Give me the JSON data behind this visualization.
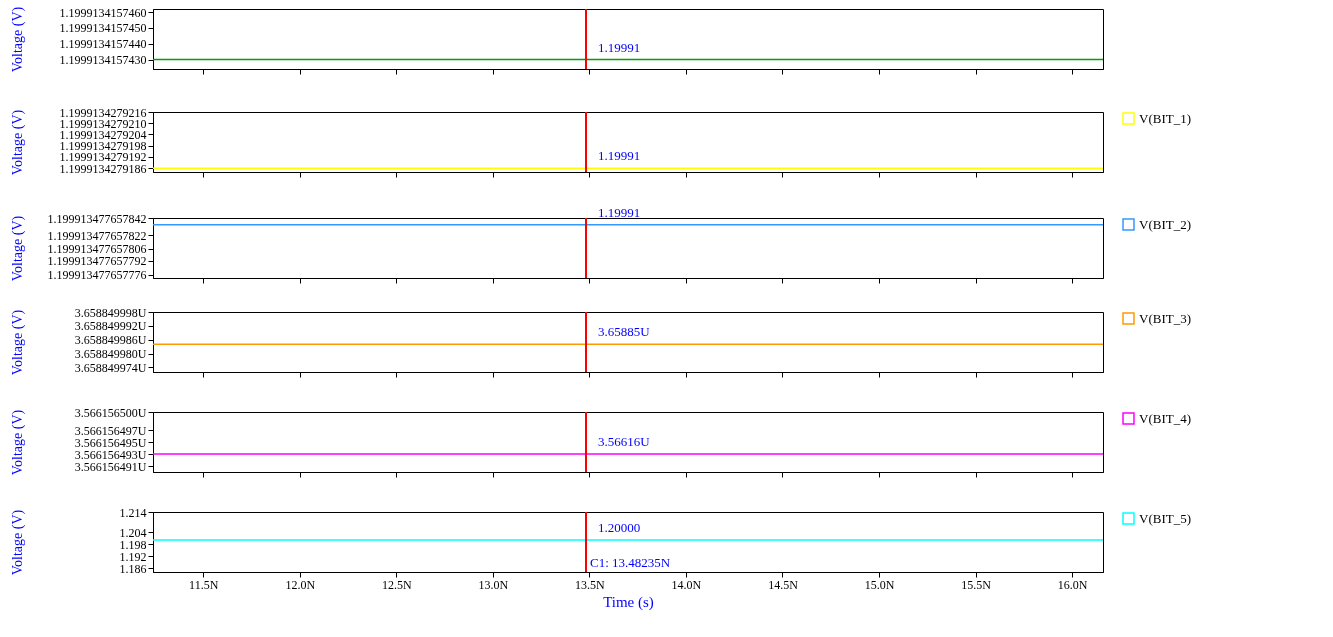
{
  "chart_data": [
    {
      "type": "line",
      "ylabel": "Voltage (V)",
      "xlim": [
        11.24,
        16.16
      ],
      "xticks": [
        11.5,
        12.0,
        12.5,
        13.0,
        13.5,
        14.0,
        14.5,
        15.0,
        15.5,
        16.0
      ],
      "tick_labels": "y",
      "ylim": [
        1.1999134157424,
        1.1999134157462
      ],
      "yticks": [
        {
          "value": 1.199913415746,
          "label": "1.1999134157460"
        },
        {
          "value": 1.199913415745,
          "label": "1.1999134157450"
        },
        {
          "value": 1.199913415744,
          "label": "1.1999134157440"
        },
        {
          "value": 1.199913415743,
          "label": "1.1999134157430"
        }
      ],
      "series": [
        {
          "color": "#00a000",
          "x": [
            11.24,
            13.48235,
            16.16
          ],
          "values": [
            1.199913415743,
            1.199913415743,
            1.199913415743
          ],
          "value_labels": [
            null,
            "1.19991",
            null
          ]
        }
      ],
      "ref_lines": [
        {
          "axis": "x",
          "value": 13.48235,
          "color": "#ff0000"
        }
      ]
    },
    {
      "type": "line",
      "ylabel": "Voltage (V)",
      "xlim": [
        11.24,
        16.16
      ],
      "xticks": [
        11.5,
        12.0,
        12.5,
        13.0,
        13.5,
        14.0,
        14.5,
        15.0,
        15.5,
        16.0
      ],
      "tick_labels": "y",
      "ylim": [
        1.1999134279184,
        1.1999134279216
      ],
      "legend": "right",
      "yticks": [
        1.1999134279216,
        {
          "value": 1.199913427921,
          "label": "1.1999134279210"
        },
        1.1999134279204,
        1.1999134279198,
        1.1999134279192,
        1.1999134279186
      ],
      "series": [
        {
          "name": "V(BIT_1)",
          "color": "#ffff00",
          "x": [
            11.24,
            13.48235,
            16.16
          ],
          "values": [
            1.1999134279186,
            1.1999134279186,
            1.1999134279186
          ],
          "value_labels": [
            null,
            "1.19991",
            null
          ]
        }
      ],
      "ref_lines": [
        {
          "axis": "x",
          "value": 13.48235,
          "color": "#ff0000"
        }
      ]
    },
    {
      "type": "line",
      "ylabel": "Voltage (V)",
      "xlim": [
        11.24,
        16.16
      ],
      "xticks": [
        11.5,
        12.0,
        12.5,
        13.0,
        13.5,
        14.0,
        14.5,
        15.0,
        15.5,
        16.0
      ],
      "tick_labels": "y",
      "ylim": [
        1.199913477657772,
        1.199913477657842
      ],
      "legend": "right",
      "yticks": [
        1.199913477657842,
        1.199913477657822,
        1.199913477657806,
        1.199913477657792,
        1.199913477657776
      ],
      "series": [
        {
          "name": "V(BIT_2)",
          "color": "#3399ff",
          "x": [
            11.24,
            13.48235,
            16.16
          ],
          "values": [
            1.199913477657834,
            1.199913477657834,
            1.199913477657834
          ],
          "value_labels": [
            null,
            "1.19991",
            null
          ]
        }
      ],
      "ref_lines": [
        {
          "axis": "x",
          "value": 13.48235,
          "color": "#ff0000"
        }
      ]
    },
    {
      "type": "line",
      "ylabel": "Voltage (V)",
      "xlim": [
        11.24,
        16.16
      ],
      "xticks": [
        11.5,
        12.0,
        12.5,
        13.0,
        13.5,
        14.0,
        14.5,
        15.0,
        15.5,
        16.0
      ],
      "tick_labels": "y",
      "ylim": [
        3.658849972,
        3.658849998
      ],
      "legend": "right",
      "yticks": [
        {
          "value": 3.658849998,
          "label": "3.658849998U"
        },
        {
          "value": 3.658849992,
          "label": "3.658849992U"
        },
        {
          "value": 3.658849986,
          "label": "3.658849986U"
        },
        {
          "value": 3.65884998,
          "label": "3.658849980U"
        },
        {
          "value": 3.658849974,
          "label": "3.658849974U"
        }
      ],
      "series": [
        {
          "name": "V(BIT_3)",
          "color": "#ff9900",
          "x": [
            11.24,
            13.48235,
            16.16
          ],
          "values": [
            3.658849984,
            3.658849984,
            3.658849984
          ],
          "value_labels": [
            null,
            "3.65885U",
            null
          ]
        }
      ],
      "ref_lines": [
        {
          "axis": "x",
          "value": 13.48235,
          "color": "#ff0000"
        }
      ]
    },
    {
      "type": "line",
      "ylabel": "Voltage (V)",
      "xlim": [
        11.24,
        16.16
      ],
      "xticks": [
        11.5,
        12.0,
        12.5,
        13.0,
        13.5,
        14.0,
        14.5,
        15.0,
        15.5,
        16.0
      ],
      "tick_labels": "y",
      "ylim": [
        3.56615649,
        3.5661565
      ],
      "legend": "right",
      "yticks": [
        {
          "value": 3.5661565,
          "label": "3.566156500U"
        },
        {
          "value": 3.566156497,
          "label": "3.566156497U"
        },
        {
          "value": 3.566156495,
          "label": "3.566156495U"
        },
        {
          "value": 3.566156493,
          "label": "3.566156493U"
        },
        {
          "value": 3.566156491,
          "label": "3.566156491U"
        }
      ],
      "series": [
        {
          "name": "V(BIT_4)",
          "color": "#ff00ff",
          "x": [
            11.24,
            13.48235,
            16.16
          ],
          "values": [
            3.566156493,
            3.566156493,
            3.566156493
          ],
          "value_labels": [
            null,
            "3.56616U",
            null
          ]
        }
      ],
      "ref_lines": [
        {
          "axis": "x",
          "value": 13.48235,
          "color": "#ff0000"
        }
      ]
    },
    {
      "type": "line",
      "ylabel": "Voltage (V)",
      "xlabel": "Time (s)",
      "xlim": [
        11.24,
        16.16
      ],
      "ylim": [
        1.184,
        1.214
      ],
      "legend": "right",
      "xticks": [
        {
          "value": 11.5,
          "label": "11.5N"
        },
        {
          "value": 12.0,
          "label": "12.0N"
        },
        {
          "value": 12.5,
          "label": "12.5N"
        },
        {
          "value": 13.0,
          "label": "13.0N"
        },
        {
          "value": 13.5,
          "label": "13.5N"
        },
        {
          "value": 14.0,
          "label": "14.0N"
        },
        {
          "value": 14.5,
          "label": "14.5N"
        },
        {
          "value": 15.0,
          "label": "15.0N"
        },
        {
          "value": 15.5,
          "label": "15.5N"
        },
        {
          "value": 16.0,
          "label": "16.0N"
        }
      ],
      "yticks": [
        1.214,
        1.204,
        1.198,
        1.192,
        1.186
      ],
      "series": [
        {
          "name": "V(BIT_5)",
          "color": "#00ffff",
          "x": [
            11.24,
            13.48235,
            16.16
          ],
          "values": [
            1.2,
            1.2,
            1.2
          ],
          "value_labels": [
            null,
            "1.20000",
            null
          ]
        }
      ],
      "ref_lines": [
        {
          "axis": "x",
          "value": 13.48235,
          "color": "#ff0000",
          "label": "C1: 13.48235N"
        }
      ]
    }
  ]
}
